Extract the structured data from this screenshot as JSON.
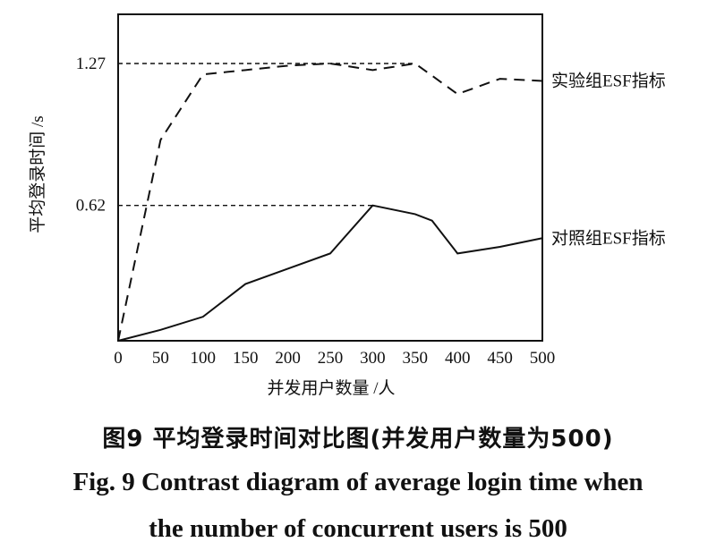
{
  "chart_data": {
    "type": "line",
    "xlabel": "并发用户数量 /人",
    "ylabel": "平均登录时间 /s",
    "xlim": [
      0,
      500
    ],
    "ylim": [
      0,
      1.5
    ],
    "x_ticks": [
      "0",
      "50",
      "100",
      "150",
      "200",
      "250",
      "300",
      "350",
      "400",
      "450",
      "500"
    ],
    "y_tick_values": [
      0.62,
      1.27
    ],
    "y_tick_labels": [
      "0.62",
      "1.27"
    ],
    "grid": false,
    "series": [
      {
        "name": "实验组ESF指标",
        "line_style": "dashed",
        "x": [
          0,
          50,
          100,
          150,
          200,
          250,
          300,
          350,
          400,
          450,
          500
        ],
        "y": [
          0.0,
          0.92,
          1.22,
          1.24,
          1.26,
          1.27,
          1.24,
          1.27,
          1.13,
          1.2,
          1.19
        ]
      },
      {
        "name": "对照组ESF指标",
        "line_style": "solid",
        "x": [
          0,
          50,
          100,
          150,
          200,
          250,
          300,
          350,
          370,
          400,
          450,
          500
        ],
        "y": [
          0.0,
          0.05,
          0.11,
          0.26,
          0.33,
          0.4,
          0.62,
          0.58,
          0.55,
          0.4,
          0.43,
          0.47
        ]
      }
    ],
    "reference_lines": [
      {
        "value": 1.27,
        "from_x": 0,
        "to_x": 350,
        "style": "dashed"
      },
      {
        "value": 0.62,
        "from_x": 0,
        "to_x": 300,
        "style": "dashed"
      }
    ]
  },
  "captions": {
    "chinese": "图9 平均登录时间对比图(并发用户数量为500)",
    "english_line1": "Fig. 9 Contrast diagram of average login time when",
    "english_line2": "the number of concurrent users is 500"
  },
  "colors": {
    "ink": "#111111"
  }
}
